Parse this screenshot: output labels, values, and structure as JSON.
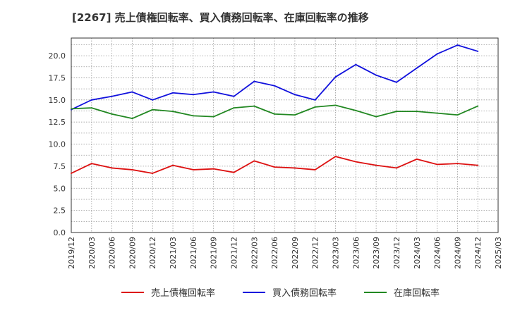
{
  "chart_data": {
    "type": "line",
    "title": "[2267]  売上債権回転率、買入債務回転率、在庫回転率の推移",
    "xlabel": "",
    "ylabel": "",
    "ylim": [
      0,
      22
    ],
    "yticks": [
      "0.0",
      "2.5",
      "5.0",
      "7.5",
      "10.0",
      "12.5",
      "15.0",
      "17.5",
      "20.0"
    ],
    "ytick_values": [
      0,
      2.5,
      5,
      7.5,
      10,
      12.5,
      15,
      17.5,
      20
    ],
    "x": [
      "2019/12",
      "2020/03",
      "2020/06",
      "2020/09",
      "2020/12",
      "2021/03",
      "2021/06",
      "2021/09",
      "2021/12",
      "2022/03",
      "2022/06",
      "2022/09",
      "2022/12",
      "2023/03",
      "2023/06",
      "2023/09",
      "2023/12",
      "2024/03",
      "2024/06",
      "2024/09",
      "2024/12",
      "2025/03"
    ],
    "grid": true,
    "legend_position": "bottom",
    "series": [
      {
        "name": "売上債権回転率",
        "color": "#dd1111",
        "values": [
          6.7,
          7.8,
          7.3,
          7.1,
          6.7,
          7.6,
          7.1,
          7.2,
          6.8,
          8.1,
          7.4,
          7.3,
          7.1,
          8.6,
          8.0,
          7.6,
          7.3,
          8.3,
          7.7,
          7.8,
          7.6,
          null
        ]
      },
      {
        "name": "買入債務回転率",
        "color": "#1111dd",
        "values": [
          13.9,
          15.0,
          15.4,
          15.9,
          15.0,
          15.8,
          15.6,
          15.9,
          15.4,
          17.1,
          16.6,
          15.6,
          15.0,
          17.6,
          19.0,
          17.8,
          17.0,
          18.6,
          20.2,
          21.2,
          20.5,
          null
        ]
      },
      {
        "name": "在庫回転率",
        "color": "#228822",
        "values": [
          14.0,
          14.1,
          13.4,
          12.9,
          13.9,
          13.7,
          13.2,
          13.1,
          14.1,
          14.3,
          13.4,
          13.3,
          14.2,
          14.4,
          13.8,
          13.1,
          13.7,
          13.7,
          13.5,
          13.3,
          14.3,
          null
        ]
      }
    ]
  }
}
